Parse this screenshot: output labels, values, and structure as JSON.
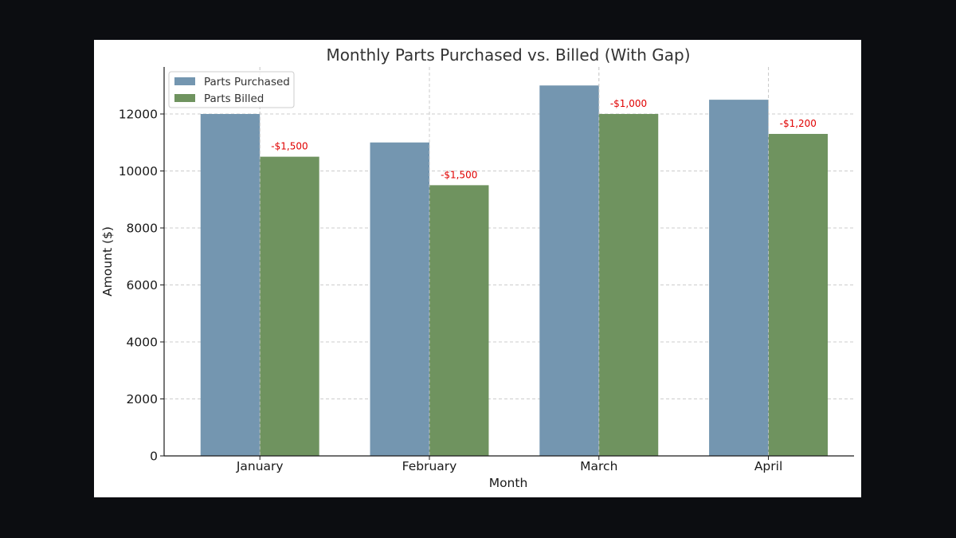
{
  "chart_data": {
    "type": "bar",
    "title": "Monthly Parts Purchased vs. Billed (With Gap)",
    "xlabel": "Month",
    "ylabel": "Amount ($)",
    "categories": [
      "January",
      "February",
      "March",
      "April"
    ],
    "series": [
      {
        "name": "Parts Purchased",
        "values": [
          12000,
          11000,
          13000,
          12500
        ],
        "color": "#7496b0"
      },
      {
        "name": "Parts Billed",
        "values": [
          10500,
          9500,
          12000,
          11300
        ],
        "color": "#6f935f"
      }
    ],
    "annotations": [
      "-$1,500",
      "-$1,500",
      "-$1,000",
      "-$1,200"
    ],
    "annotation_color": "#e00000",
    "yticks": [
      "0",
      "2000",
      "4000",
      "6000",
      "8000",
      "10000",
      "12000"
    ],
    "ylim": [
      0,
      13650
    ],
    "grid": true,
    "legend_position": "top-left"
  }
}
